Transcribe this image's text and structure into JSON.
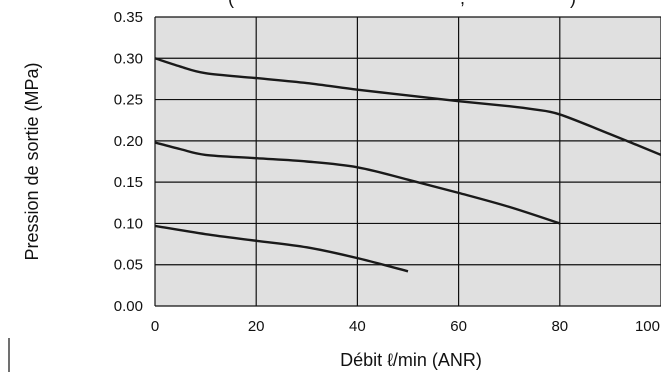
{
  "chart_data": {
    "type": "line",
    "title": "",
    "xlabel": "Débit ℓ/min (ANR)",
    "ylabel": "Pression de sortie (MPa)",
    "xlim": [
      0,
      100
    ],
    "ylim": [
      0.0,
      0.35
    ],
    "x_ticks": [
      "0",
      "20",
      "40",
      "60",
      "80",
      "100"
    ],
    "y_ticks": [
      "0.00",
      "0.05",
      "0.10",
      "0.15",
      "0.20",
      "0.25",
      "0.30",
      "0.35"
    ],
    "grid": true,
    "legend": "none",
    "series": [
      {
        "x": [
          0,
          5,
          10,
          20,
          30,
          40,
          50,
          60,
          70,
          75,
          80,
          90,
          100
        ],
        "y": [
          0.3,
          0.29,
          0.282,
          0.276,
          0.27,
          0.262,
          0.255,
          0.248,
          0.242,
          0.238,
          0.232,
          0.208,
          0.183
        ]
      },
      {
        "x": [
          0,
          5,
          10,
          20,
          30,
          40,
          50,
          60,
          70,
          80
        ],
        "y": [
          0.198,
          0.19,
          0.183,
          0.179,
          0.175,
          0.168,
          0.153,
          0.137,
          0.12,
          0.1
        ]
      },
      {
        "x": [
          0,
          10,
          20,
          30,
          40,
          50
        ],
        "y": [
          0.097,
          0.087,
          0.079,
          0.071,
          0.058,
          0.042
        ]
      }
    ]
  },
  "colors": {
    "plot_background": "#e0e0e0",
    "grid": "#111111",
    "line": "#1a1a1a",
    "text": "#111111"
  }
}
